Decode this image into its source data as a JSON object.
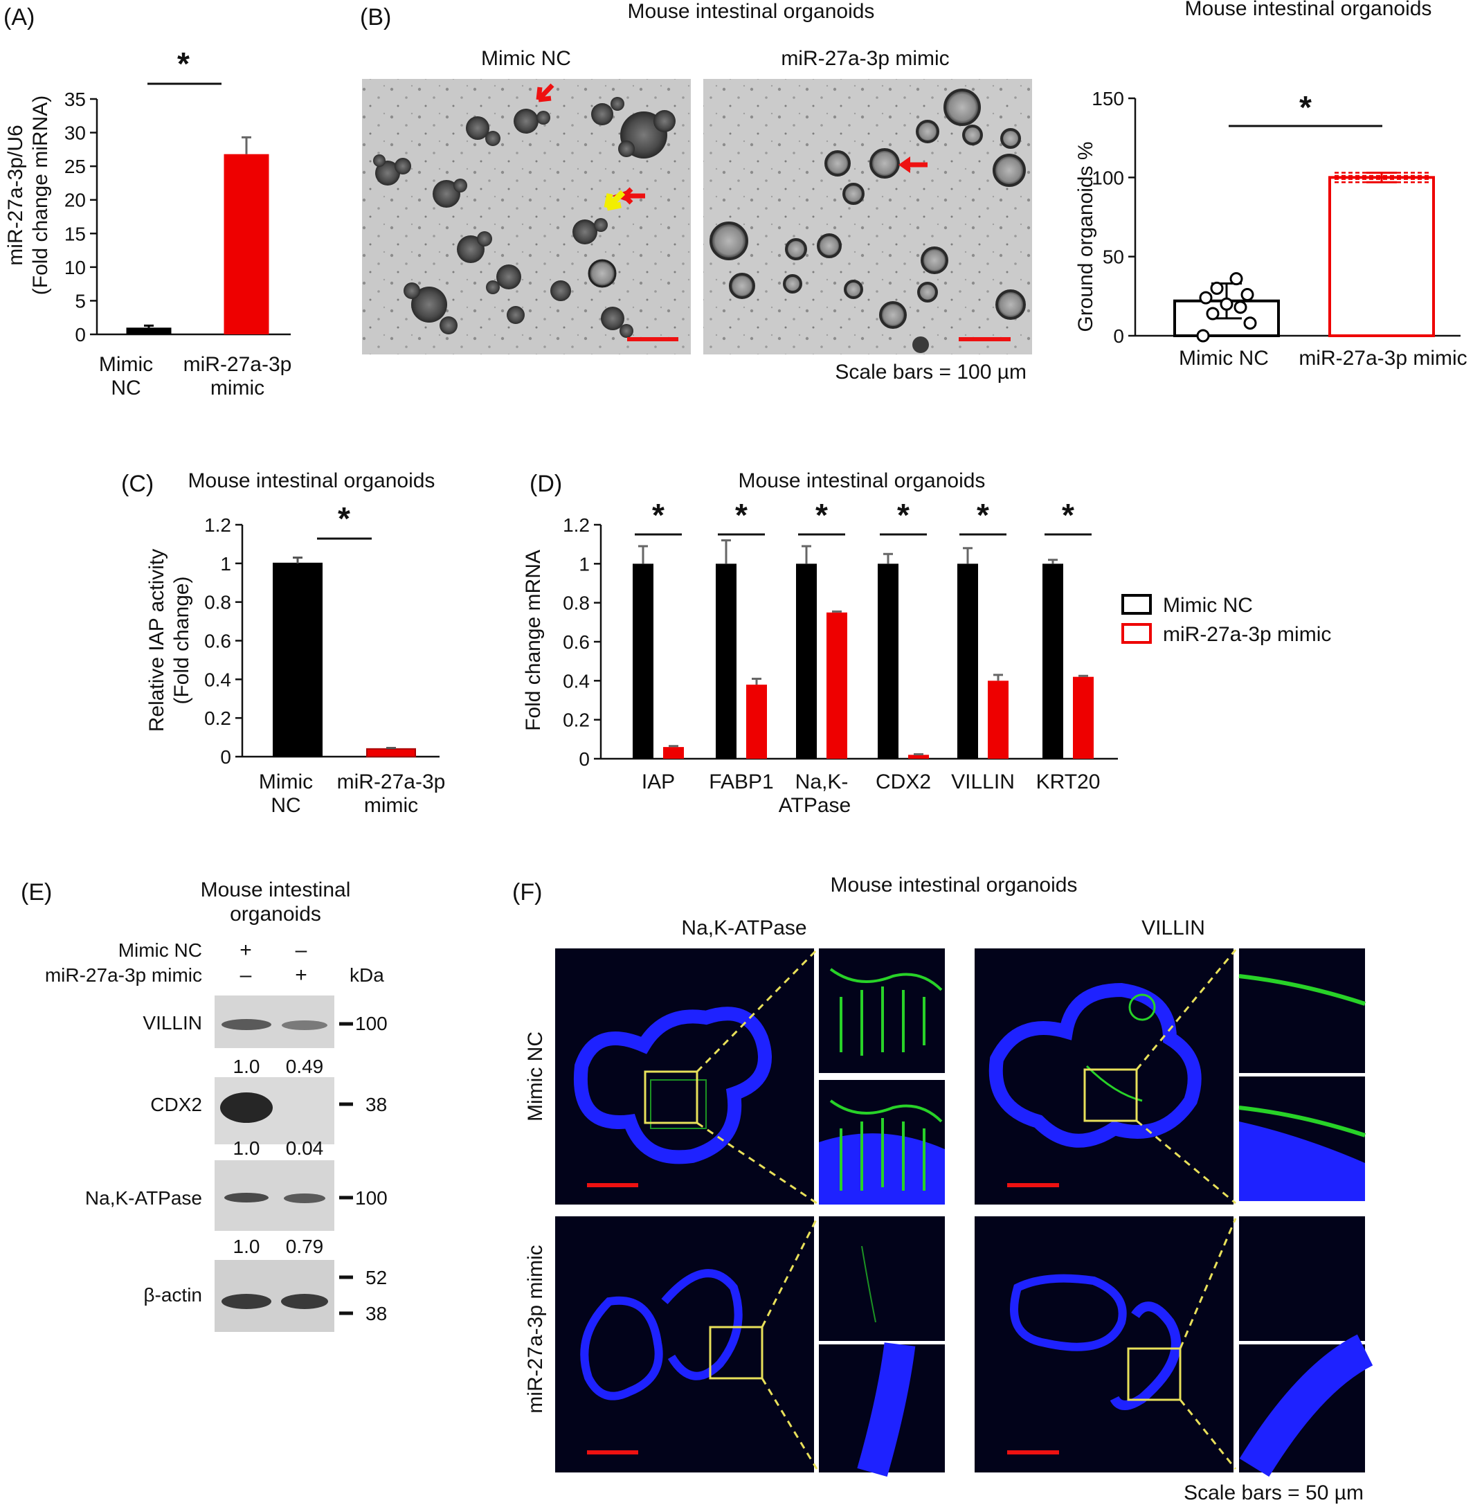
{
  "panels": {
    "A": {
      "label": "(A)",
      "significance": "*",
      "ylabel_line1": "miR-27a-3p/U6",
      "ylabel_line2": "(Fold change miRNA)",
      "xcat1_line1": "Mimic",
      "xcat1_line2": "NC",
      "xcat2_line1": "miR-27a-3p",
      "xcat2_line2": "mimic"
    },
    "B": {
      "label": "(B)",
      "title_images": "Mouse intestinal organoids",
      "title_chart": "Mouse intestinal organoids",
      "image1_title": "Mimic NC",
      "image2_title": "miR-27a-3p mimic",
      "scale_text": "Scale bars = 100 µm",
      "ylabel": "Ground organoids %",
      "significance": "*",
      "xcat1": "Mimic NC",
      "xcat2": "miR-27a-3p mimic"
    },
    "C": {
      "label": "(C)",
      "title": "Mouse intestinal organoids",
      "ylabel_line1": "Relative IAP activity",
      "ylabel_line2": "(Fold change)",
      "significance": "*",
      "xcat1_line1": "Mimic",
      "xcat1_line2": "NC",
      "xcat2_line1": "miR-27a-3p",
      "xcat2_line2": "mimic"
    },
    "D": {
      "label": "(D)",
      "title": "Mouse intestinal organoids",
      "ylabel": "Fold change mRNA",
      "significance": "*",
      "legend1": "Mimic NC",
      "legend2": "miR-27a-3p mimic",
      "xcat_na_line1": "Na,K-",
      "xcat_na_line2": "ATPase"
    },
    "E": {
      "label": "(E)",
      "title_line1": "Mouse intestinal",
      "title_line2": "organoids",
      "row1": "Mimic NC",
      "row2": "miR-27a-3p mimic",
      "plus": "+",
      "minus": "–",
      "kda": "kDa",
      "blots": [
        "VILLIN",
        "CDX2",
        "Na,K-ATPase",
        "β-actin"
      ],
      "markers": [
        "100",
        "38",
        "100",
        "52",
        "38"
      ],
      "quant": [
        [
          "1.0",
          "0.49"
        ],
        [
          "1.0",
          "0.04"
        ],
        [
          "1.0",
          "0.79"
        ]
      ]
    },
    "F": {
      "label": "(F)",
      "title": "Mouse intestinal organoids",
      "col1": "Na,K-ATPase",
      "col2": "VILLIN",
      "row1": "Mimic NC",
      "row2": "miR-27a-3p mimic",
      "scale_text": "Scale bars = 50 µm"
    }
  },
  "colors": {
    "black_series": "#000000",
    "red_series": "#ee0000",
    "yellow_box": "#e8e05a",
    "nucleus": "#1e22ff",
    "membrane": "#28d228"
  },
  "chart_data": [
    {
      "panel": "A",
      "type": "bar",
      "categories": [
        "Mimic NC",
        "miR-27a-3p mimic"
      ],
      "values": [
        1.0,
        26.8
      ],
      "errors": [
        0.3,
        2.5
      ],
      "colors": [
        "#000000",
        "#ee0000"
      ],
      "ylim": [
        0,
        35
      ],
      "yticks": [
        0,
        5,
        10,
        15,
        20,
        25,
        30,
        35
      ]
    },
    {
      "panel": "B",
      "type": "bar",
      "categories": [
        "Mimic NC",
        "miR-27a-3p mimic"
      ],
      "values": [
        22,
        100
      ],
      "errors": [
        11,
        3
      ],
      "points": [
        [
          0,
          8,
          14,
          18,
          20,
          24,
          26,
          30,
          36
        ],
        [
          97,
          99,
          100,
          101,
          103
        ]
      ],
      "colors": [
        "#000000",
        "#ee0000"
      ],
      "ylim": [
        0,
        150
      ],
      "yticks": [
        0,
        50,
        100,
        150
      ]
    },
    {
      "panel": "C",
      "type": "bar",
      "categories": [
        "Mimic NC",
        "miR-27a-3p mimic"
      ],
      "values": [
        1.0,
        0.04
      ],
      "errors": [
        0.03,
        0.005
      ],
      "colors": [
        "#000000",
        "#ee0000"
      ],
      "ylim": [
        0,
        1.2
      ],
      "yticks": [
        "0",
        "0.2",
        "0.4",
        "0.6",
        "0.8",
        "1",
        "1.2"
      ]
    },
    {
      "panel": "D",
      "type": "bar",
      "categories": [
        "IAP",
        "FABP1",
        "Na,K-ATPase",
        "CDX2",
        "VILLIN",
        "KRT20"
      ],
      "series": [
        {
          "name": "Mimic NC",
          "color": "#000000",
          "values": [
            1.0,
            1.0,
            1.0,
            1.0,
            1.0,
            1.0
          ],
          "errors": [
            0.09,
            0.12,
            0.09,
            0.05,
            0.08,
            0.02
          ]
        },
        {
          "name": "miR-27a-3p mimic",
          "color": "#ee0000",
          "values": [
            0.06,
            0.38,
            0.75,
            0.02,
            0.4,
            0.42
          ],
          "errors": [
            0.005,
            0.03,
            0.005,
            0.003,
            0.03,
            0.005
          ]
        }
      ],
      "ylim": [
        0,
        1.2
      ],
      "yticks": [
        "0",
        "0.2",
        "0.4",
        "0.6",
        "0.8",
        "1",
        "1.2"
      ]
    }
  ]
}
